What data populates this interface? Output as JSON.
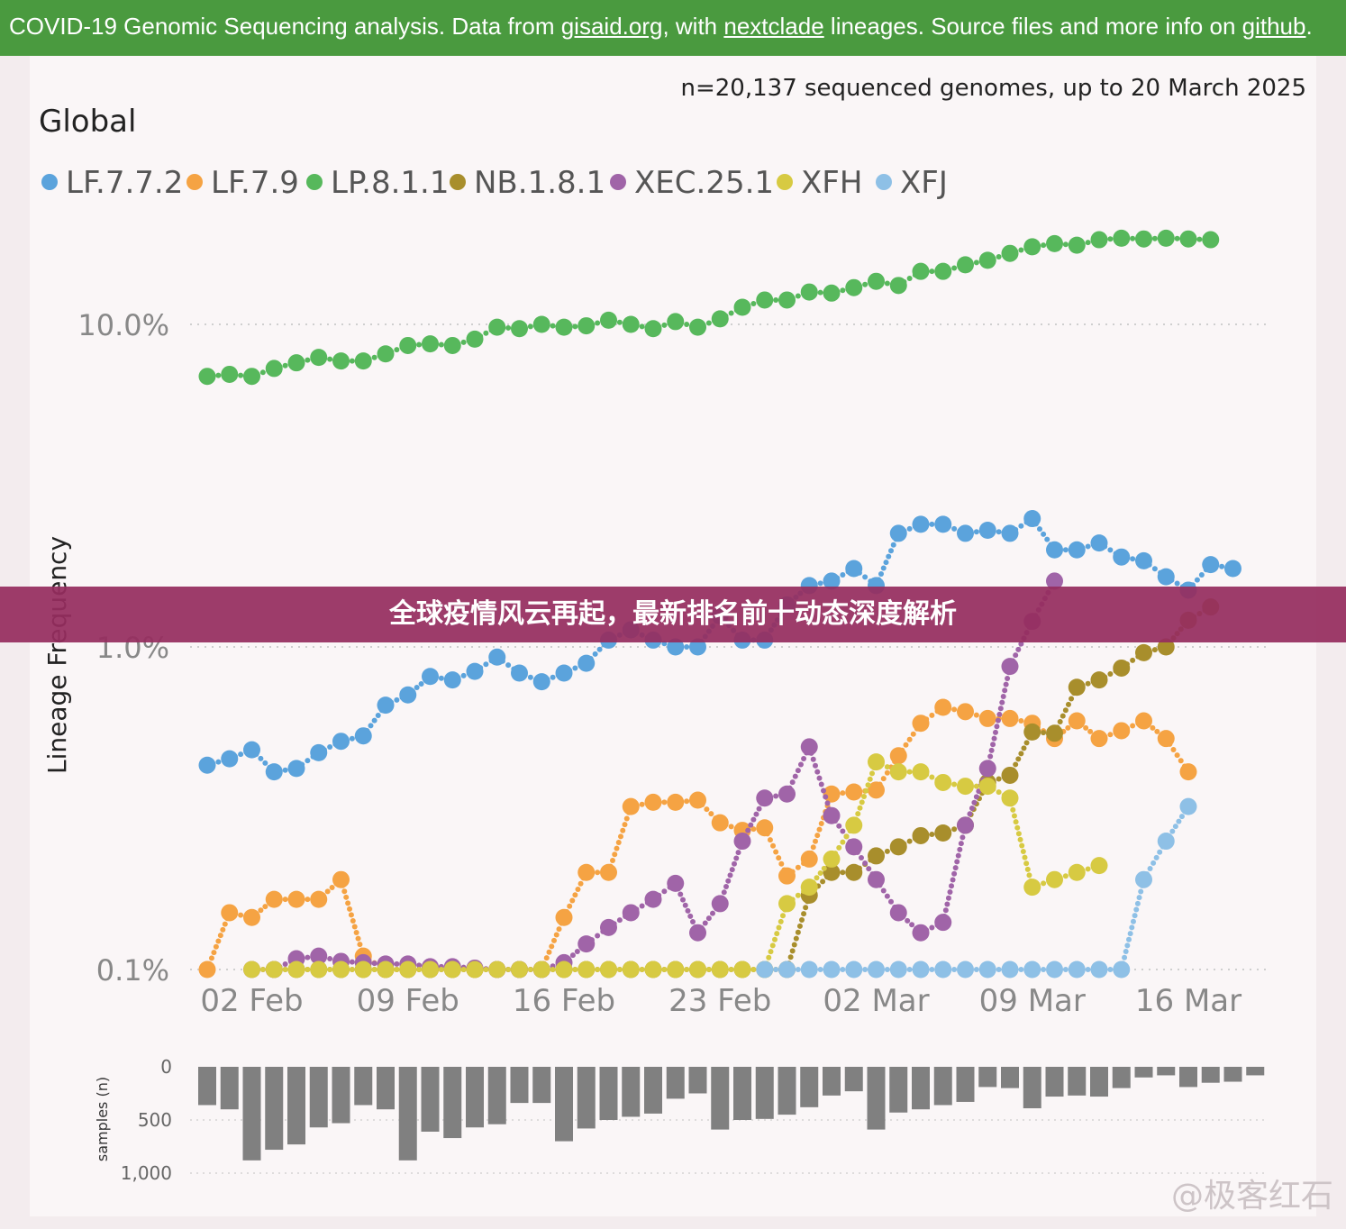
{
  "header": {
    "text_before": "COVID-19 Genomic Sequencing analysis. Data from ",
    "link1": "gisaid.org",
    "text_mid1": ", with ",
    "link2": "nextclade",
    "text_mid2": " lineages. Source files and more info on ",
    "link3": "github",
    "text_end": "."
  },
  "banner": {
    "title": "全球疫情风云再起，最新排名前十动态深度解析"
  },
  "watermark": "@极客红石",
  "chart_data": {
    "type": "scatter",
    "title": "Global",
    "subtitle": "n=20,137 sequenced genomes, up to 20 March 2025",
    "ylabel": "Lineage Frequency",
    "y_scale": "log",
    "ylim": [
      0.1,
      20
    ],
    "y_ticks": [
      {
        "value": 0.1,
        "label": "0.1%"
      },
      {
        "value": 1.0,
        "label": "1.0%"
      },
      {
        "value": 10.0,
        "label": "10.0%"
      }
    ],
    "x_start": "2025-01-31",
    "x_ticks": [
      {
        "date": "2025-02-02",
        "label": "02 Feb"
      },
      {
        "date": "2025-02-09",
        "label": "09 Feb"
      },
      {
        "date": "2025-02-16",
        "label": "16 Feb"
      },
      {
        "date": "2025-02-23",
        "label": "23 Feb"
      },
      {
        "date": "2025-03-02",
        "label": "02 Mar"
      },
      {
        "date": "2025-03-09",
        "label": "09 Mar"
      },
      {
        "date": "2025-03-16",
        "label": "16 Mar"
      }
    ],
    "grid": true,
    "legend_position": "top-left",
    "series": [
      {
        "name": "LF.7.7.2",
        "color": "#5ba3dc",
        "first_day": 0,
        "values": [
          0.43,
          0.45,
          0.48,
          0.41,
          0.42,
          0.47,
          0.51,
          0.53,
          0.66,
          0.71,
          0.81,
          0.79,
          0.84,
          0.93,
          0.83,
          0.78,
          0.83,
          0.89,
          1.05,
          1.13,
          1.05,
          1.0,
          1.0,
          1.25,
          1.05,
          1.05,
          1.35,
          1.55,
          1.6,
          1.75,
          1.55,
          2.25,
          2.4,
          2.4,
          2.25,
          2.3,
          2.25,
          2.5,
          2.0,
          2.0,
          2.1,
          1.9,
          1.85,
          1.65,
          1.5,
          1.8,
          1.75
        ]
      },
      {
        "name": "LF.7.9",
        "color": "#f5a343",
        "first_day": 0,
        "values": [
          0.1,
          0.15,
          0.145,
          0.165,
          0.165,
          0.165,
          0.19,
          0.11,
          0.1,
          0.1,
          0.1,
          0.1,
          0.1,
          0.1,
          0.1,
          0.1,
          0.145,
          0.2,
          0.2,
          0.32,
          0.33,
          0.33,
          0.335,
          0.285,
          0.27,
          0.275,
          0.195,
          0.22,
          0.35,
          0.355,
          0.36,
          0.46,
          0.58,
          0.65,
          0.63,
          0.6,
          0.6,
          0.58,
          0.52,
          0.59,
          0.52,
          0.55,
          0.59,
          0.52,
          0.41
        ]
      },
      {
        "name": "LP.8.1.1",
        "color": "#57b85c",
        "first_day": 0,
        "values": [
          6.9,
          7.0,
          6.9,
          7.3,
          7.6,
          7.9,
          7.7,
          7.7,
          8.1,
          8.6,
          8.7,
          8.6,
          9.0,
          9.8,
          9.7,
          10.0,
          9.8,
          9.9,
          10.3,
          10.0,
          9.7,
          10.2,
          9.8,
          10.4,
          11.3,
          11.9,
          11.9,
          12.6,
          12.5,
          13.0,
          13.6,
          13.2,
          14.6,
          14.6,
          15.3,
          15.8,
          16.6,
          17.4,
          17.8,
          17.6,
          18.3,
          18.5,
          18.4,
          18.5,
          18.4,
          18.3
        ]
      },
      {
        "name": "NB.1.8.1",
        "color": "#a88e2c",
        "first_day": 3,
        "values": [
          0.1,
          0.1,
          0.1,
          0.1,
          0.1,
          0.1,
          0.1,
          0.1,
          0.1,
          0.1,
          0.1,
          0.1,
          0.1,
          0.1,
          0.1,
          0.1,
          0.1,
          0.1,
          0.1,
          0.1,
          0.1,
          0.1,
          0.1,
          0.1,
          0.17,
          0.2,
          0.2,
          0.225,
          0.24,
          0.26,
          0.265,
          0.28,
          0.38,
          0.4,
          0.545,
          0.54,
          0.75,
          0.79,
          0.86,
          0.96,
          1.0,
          1.21,
          1.33
        ]
      },
      {
        "name": "XEC.25.1",
        "color": "#a064a8",
        "first_day": 2,
        "values": [
          0.1,
          0.1,
          0.108,
          0.11,
          0.106,
          0.105,
          0.104,
          0.104,
          0.102,
          0.102,
          0.101,
          0.1,
          0.1,
          0.1,
          0.105,
          0.12,
          0.135,
          0.15,
          0.165,
          0.185,
          0.13,
          0.16,
          0.25,
          0.34,
          0.35,
          0.49,
          0.3,
          0.24,
          0.19,
          0.15,
          0.13,
          0.14,
          0.28,
          0.42,
          0.87,
          1.2,
          1.6
        ]
      },
      {
        "name": "XFH",
        "color": "#d7ca42",
        "first_day": 2,
        "values": [
          0.1,
          0.1,
          0.1,
          0.1,
          0.1,
          0.1,
          0.1,
          0.1,
          0.1,
          0.1,
          0.1,
          0.1,
          0.1,
          0.1,
          0.1,
          0.1,
          0.1,
          0.1,
          0.1,
          0.1,
          0.1,
          0.1,
          0.1,
          0.1,
          0.16,
          0.18,
          0.22,
          0.28,
          0.44,
          0.41,
          0.41,
          0.38,
          0.37,
          0.37,
          0.34,
          0.18,
          0.19,
          0.2,
          0.21
        ]
      },
      {
        "name": "XFJ",
        "color": "#8ec0e6",
        "first_day": 25,
        "values": [
          0.1,
          0.1,
          0.1,
          0.1,
          0.1,
          0.1,
          0.1,
          0.1,
          0.1,
          0.1,
          0.1,
          0.1,
          0.1,
          0.1,
          0.1,
          0.1,
          0.1,
          0.19,
          0.25,
          0.32
        ]
      }
    ],
    "samples": {
      "ylabel": "samples (n)",
      "y_ticks": [
        0,
        500,
        1000
      ],
      "y_tick_labels": [
        "0",
        "500",
        "1,000"
      ],
      "first_day": 0,
      "values": [
        360,
        400,
        880,
        780,
        730,
        570,
        530,
        360,
        400,
        880,
        610,
        670,
        570,
        540,
        340,
        340,
        700,
        580,
        500,
        470,
        440,
        300,
        250,
        590,
        500,
        490,
        450,
        380,
        270,
        230,
        590,
        430,
        400,
        360,
        330,
        190,
        200,
        390,
        280,
        270,
        280,
        200,
        100,
        80,
        190,
        150,
        140,
        80
      ]
    }
  }
}
